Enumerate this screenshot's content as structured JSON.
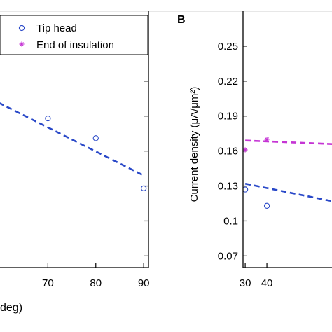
{
  "chart_data": [
    {
      "type": "scatter",
      "panel_label": "",
      "xlabel": "deg)",
      "ylabel": "",
      "xlim": [
        60,
        91
      ],
      "ylim": [
        0.06,
        0.28
      ],
      "x_ticks": [
        70,
        80,
        90
      ],
      "x_tick_labels": [
        "70",
        "80",
        "90"
      ],
      "y_ticks": [
        0.07,
        0.1,
        0.13,
        0.16,
        0.19,
        0.22,
        0.25
      ],
      "y_tick_labels": [],
      "grid": false,
      "legend": {
        "placement": "top-right",
        "entries": [
          "Tip head",
          "End of insulation"
        ]
      },
      "series": [
        {
          "name": "Tip head",
          "marker": "circle",
          "color": "#2948c8",
          "points": [
            [
              70,
              0.188
            ],
            [
              80,
              0.171
            ],
            [
              90,
              0.128
            ]
          ],
          "fit": [
            [
              58,
              0.205
            ],
            [
              90,
              0.139
            ]
          ]
        },
        {
          "name": "End of insulation",
          "marker": "asterisk",
          "color": "#c535d4",
          "points": [
            [
              70,
              0.245
            ],
            [
              80,
              0.249
            ],
            [
              90,
              0.248
            ]
          ],
          "fit": [
            [
              58,
              0.244
            ],
            [
              90,
              0.251
            ]
          ]
        }
      ]
    },
    {
      "type": "scatter",
      "panel_label": "B",
      "xlabel": "",
      "ylabel": "Current density (μA/μm²)",
      "xlim": [
        29,
        70
      ],
      "ylim": [
        0.06,
        0.28
      ],
      "x_ticks": [
        30,
        40
      ],
      "x_tick_labels": [
        "30",
        "40"
      ],
      "y_ticks": [
        0.07,
        0.1,
        0.13,
        0.16,
        0.19,
        0.22,
        0.25
      ],
      "y_tick_labels": [
        "0.07",
        "0.1",
        "0.13",
        "0.16",
        "0.19",
        "0.22",
        "0.25"
      ],
      "grid": false,
      "series": [
        {
          "name": "",
          "marker": "circle",
          "color": "#2948c8",
          "points": [
            [
              30,
              0.127
            ],
            [
              40,
              0.113
            ]
          ],
          "fit": [
            [
              30,
              0.132
            ],
            [
              70,
              0.117
            ]
          ]
        },
        {
          "name": "",
          "marker": "asterisk",
          "color": "#c535d4",
          "points": [
            [
              30,
              0.161
            ],
            [
              40,
              0.17
            ]
          ],
          "fit": [
            [
              30,
              0.169
            ],
            [
              70,
              0.166
            ]
          ]
        }
      ]
    }
  ]
}
